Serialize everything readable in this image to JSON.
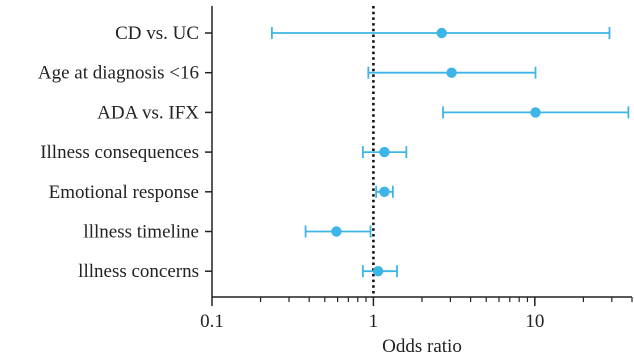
{
  "chart_data": {
    "type": "forest",
    "title": "",
    "xlabel": "Odds ratio",
    "ylabel": "",
    "x_scale": "log",
    "xlim": [
      0.1,
      40
    ],
    "x_ticks": [
      0.1,
      1,
      10
    ],
    "x_tick_labels": [
      "0.1",
      "1",
      "10"
    ],
    "reference_line": 1,
    "reference_line_style": "dotted",
    "grid": false,
    "color": "#3DB5E6",
    "categories": [
      "CD vs. UC",
      "Age at diagnosis <16",
      "ADA vs. IFX",
      "Illness consequences",
      "Emotional response",
      "lllness timeline",
      "lllness concerns"
    ],
    "estimates": [
      2.65,
      3.05,
      10.1,
      1.17,
      1.17,
      0.59,
      1.07
    ],
    "ci_lower": [
      0.235,
      0.93,
      2.7,
      0.86,
      1.04,
      0.38,
      0.86
    ],
    "ci_upper": [
      29.0,
      10.1,
      38.0,
      1.6,
      1.32,
      0.96,
      1.4
    ]
  }
}
